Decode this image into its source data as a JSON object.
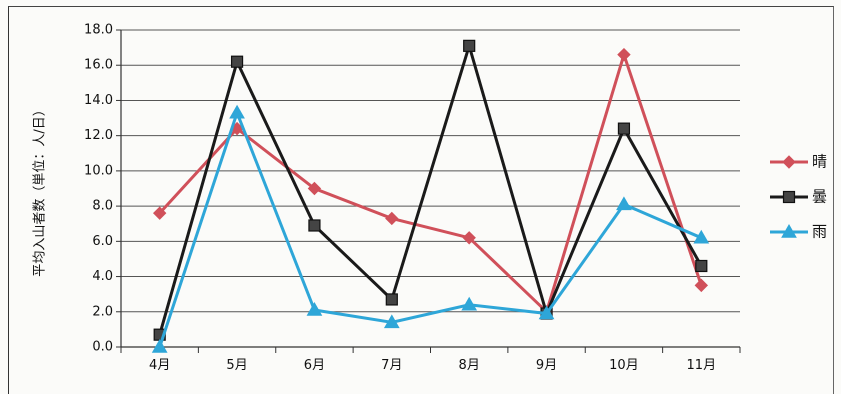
{
  "chart_data": {
    "type": "line",
    "title": "",
    "xlabel": "",
    "ylabel": "平均入山者数（単位：人/日）",
    "categories": [
      "4月",
      "5月",
      "6月",
      "7月",
      "8月",
      "9月",
      "10月",
      "11月"
    ],
    "ylim": [
      0,
      18
    ],
    "yticks": [
      "0.0",
      "2.0",
      "4.0",
      "6.0",
      "8.0",
      "10.0",
      "12.0",
      "14.0",
      "16.0",
      "18.0"
    ],
    "grid": "horizontal",
    "legend": "right",
    "series": [
      {
        "name": "晴",
        "values": [
          7.6,
          12.4,
          9.0,
          7.3,
          6.2,
          2.0,
          16.6,
          3.5
        ],
        "color": "#d0505a",
        "marker": "diamond"
      },
      {
        "name": "曇",
        "values": [
          0.7,
          16.2,
          6.9,
          2.7,
          17.1,
          1.9,
          12.4,
          4.6
        ],
        "color": "#1a1a1a",
        "marker": "square"
      },
      {
        "name": "雨",
        "values": [
          0.0,
          13.3,
          2.1,
          1.4,
          2.4,
          1.9,
          8.1,
          6.2
        ],
        "color": "#2ea6d8",
        "marker": "triangle"
      }
    ]
  }
}
